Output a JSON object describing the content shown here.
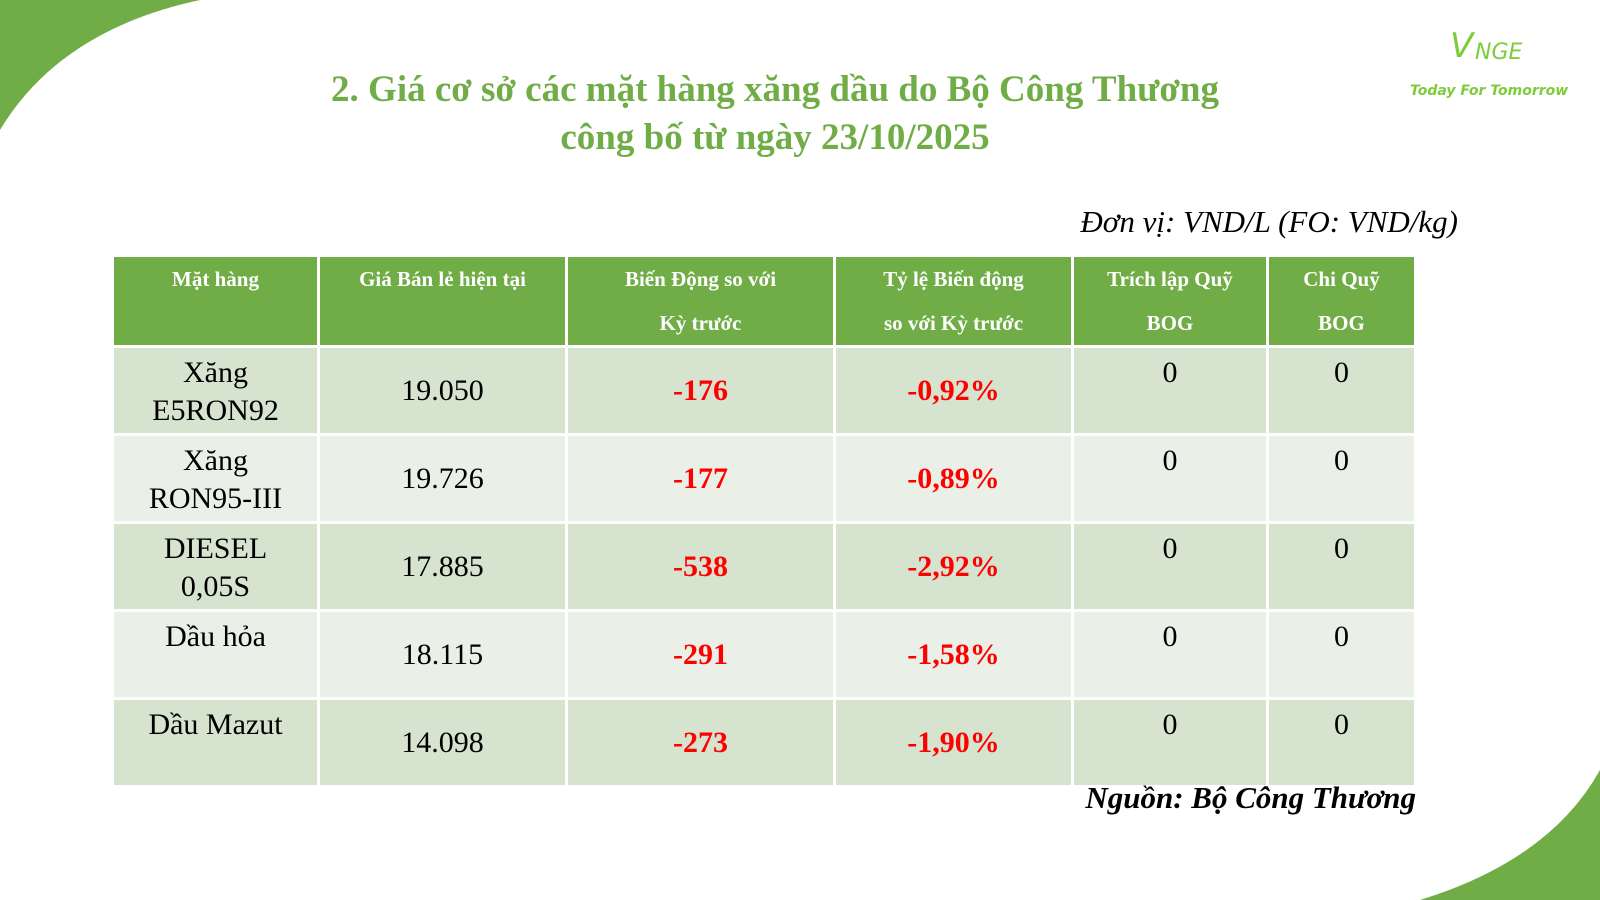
{
  "title_line1": "2. Giá cơ sở các mặt hàng xăng dầu do Bộ Công Thương",
  "title_line2": "công bố từ ngày 23/10/2025",
  "logo": {
    "mark": "V",
    "name": "NGE",
    "tagline": "Today For Tomorrow"
  },
  "unit": "Đơn vị: VND/L (FO: VND/kg)",
  "source": "Nguồn: Bộ Công Thương",
  "colors": {
    "accent": "#70ad47",
    "negative": "#ff0000",
    "row_dark": "#d5e3cf",
    "row_light": "#eaf0e7"
  },
  "table": {
    "headers": [
      [
        "Mặt hàng",
        ""
      ],
      [
        "Giá Bán lẻ hiện tại",
        ""
      ],
      [
        "Biến Động so với",
        "Kỳ trước"
      ],
      [
        "Tỷ lệ Biến động",
        "so với Kỳ trước"
      ],
      [
        "Trích lập Quỹ",
        "BOG"
      ],
      [
        "Chi Quỹ",
        "BOG"
      ]
    ],
    "rows": [
      {
        "item": [
          "Xăng",
          "E5RON92"
        ],
        "price": "19.050",
        "change": "-176",
        "pct": "-0,92%",
        "bog_in": "0",
        "bog_out": "0"
      },
      {
        "item": [
          "Xăng",
          "RON95-III"
        ],
        "price": "19.726",
        "change": "-177",
        "pct": "-0,89%",
        "bog_in": "0",
        "bog_out": "0"
      },
      {
        "item": [
          "DIESEL",
          "0,05S"
        ],
        "price": "17.885",
        "change": "-538",
        "pct": "-2,92%",
        "bog_in": "0",
        "bog_out": "0"
      },
      {
        "item": [
          "Dầu hỏa",
          ""
        ],
        "price": "18.115",
        "change": "-291",
        "pct": "-1,58%",
        "bog_in": "0",
        "bog_out": "0"
      },
      {
        "item": [
          "Dầu Mazut",
          ""
        ],
        "price": "14.098",
        "change": "-273",
        "pct": "-1,90%",
        "bog_in": "0",
        "bog_out": "0"
      }
    ]
  }
}
